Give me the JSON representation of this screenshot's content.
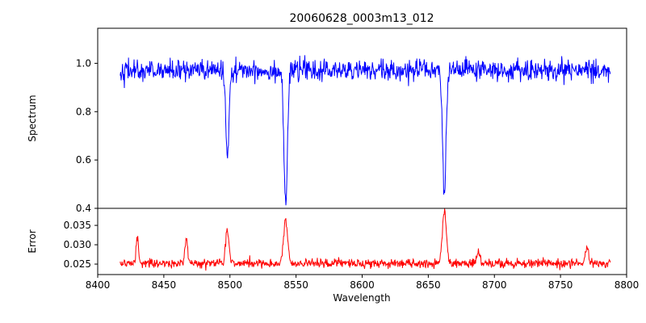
{
  "chart_data": {
    "type": "line",
    "title": "20060628_0003m13_012",
    "xlabel": "Wavelength",
    "xlim": [
      8400,
      8800
    ],
    "x_ticks": [
      8400,
      8450,
      8500,
      8550,
      8600,
      8650,
      8700,
      8750,
      8800
    ],
    "x_tick_labels": [
      "8400",
      "8450",
      "8500",
      "8550",
      "8600",
      "8650",
      "8700",
      "8750",
      "8800"
    ],
    "x_range": [
      8417,
      8788
    ],
    "sample_step": 0.35,
    "grid": false,
    "legend": "none",
    "panels": [
      {
        "name": "spectrum",
        "ylabel": "Spectrum",
        "color": "#0000ff",
        "ylim": [
          0.4,
          1.145
        ],
        "y_ticks": [
          0.4,
          0.6,
          0.8,
          1.0
        ],
        "y_tick_labels": [
          "0.4",
          "0.6",
          "0.8",
          "1.0"
        ],
        "continuum": 0.97,
        "noise_std": 0.022,
        "absorption_lines": [
          {
            "center": 8498.0,
            "depth": 0.37,
            "width": 1.1
          },
          {
            "center": 8542.1,
            "depth": 0.555,
            "width": 1.3
          },
          {
            "center": 8662.1,
            "depth": 0.515,
            "width": 1.3
          }
        ]
      },
      {
        "name": "error",
        "ylabel": "Error",
        "color": "#ff0000",
        "ylim": [
          0.0223,
          0.0394
        ],
        "y_ticks": [
          0.025,
          0.03,
          0.035
        ],
        "y_tick_labels": [
          "0.025",
          "0.030",
          "0.035"
        ],
        "baseline": 0.0252,
        "noise_std": 0.0006,
        "peaks": [
          {
            "center": 8430.0,
            "height": 0.006,
            "width": 1.0
          },
          {
            "center": 8467.0,
            "height": 0.0062,
            "width": 1.0
          },
          {
            "center": 8498.0,
            "height": 0.0082,
            "width": 1.3
          },
          {
            "center": 8542.1,
            "height": 0.0112,
            "width": 1.5
          },
          {
            "center": 8662.1,
            "height": 0.0132,
            "width": 1.5
          },
          {
            "center": 8688.0,
            "height": 0.003,
            "width": 1.2
          },
          {
            "center": 8770.0,
            "height": 0.0045,
            "width": 1.0
          }
        ]
      }
    ]
  }
}
